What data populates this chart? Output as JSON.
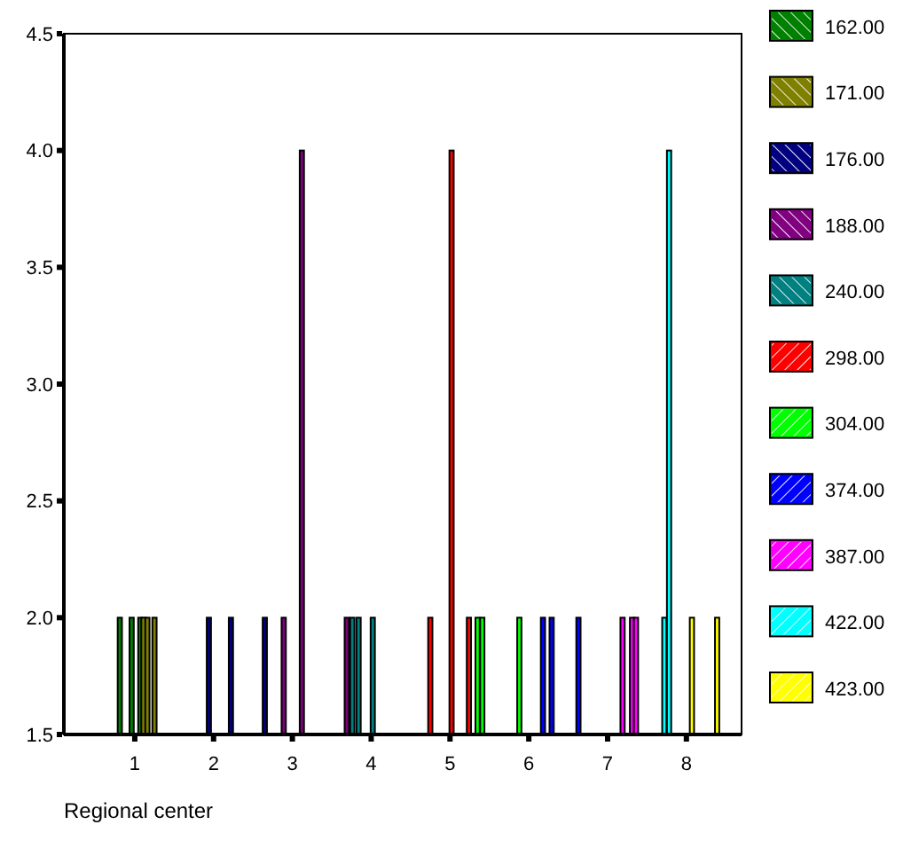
{
  "chart_data": {
    "type": "bar",
    "xlabel": "Regional center",
    "xlim": [
      0.1,
      8.7
    ],
    "xticks": [
      1,
      2,
      3,
      4,
      5,
      6,
      7,
      8
    ],
    "ylim": [
      1.5,
      4.5
    ],
    "yticks": [
      {
        "value": 1.5,
        "label": "1.5"
      },
      {
        "value": 2,
        "label": "2.0"
      },
      {
        "value": 2.5,
        "label": "2.5"
      },
      {
        "value": 3,
        "label": "3.0"
      },
      {
        "value": 3.5,
        "label": "3.5"
      },
      {
        "value": 4,
        "label": "4.0"
      },
      {
        "value": 4.5,
        "label": "4.5"
      }
    ],
    "grid": false,
    "legend": "right",
    "series": [
      {
        "name": "162.00",
        "color": "#008000",
        "x": [
          0.81,
          0.96,
          1.07
        ],
        "values": [
          2,
          2,
          2
        ]
      },
      {
        "name": "171.00",
        "color": "#808000",
        "x": [
          1.11,
          1.16,
          1.25
        ],
        "values": [
          2,
          2,
          2
        ]
      },
      {
        "name": "176.00",
        "color": "#000080",
        "x": [
          1.94,
          2.22,
          2.65
        ],
        "values": [
          2,
          2,
          2
        ]
      },
      {
        "name": "188.00",
        "color": "#800080",
        "x": [
          2.89,
          3.12,
          3.69
        ],
        "values": [
          2,
          4,
          2
        ]
      },
      {
        "name": "240.00",
        "color": "#008080",
        "x": [
          3.76,
          3.84,
          4.02
        ],
        "values": [
          2,
          2,
          2
        ]
      },
      {
        "name": "298.00",
        "color": "#ff0000",
        "x": [
          4.75,
          5.02,
          5.24
        ],
        "values": [
          2,
          4,
          2
        ]
      },
      {
        "name": "304.00",
        "color": "#00ff00",
        "x": [
          5.35,
          5.41,
          5.88
        ],
        "values": [
          2,
          2,
          2
        ]
      },
      {
        "name": "374.00",
        "color": "#0000ff",
        "x": [
          6.18,
          6.29,
          6.63
        ],
        "values": [
          2,
          2,
          2
        ]
      },
      {
        "name": "387.00",
        "color": "#ff00ff",
        "x": [
          7.19,
          7.31,
          7.36
        ],
        "values": [
          2,
          2,
          2
        ]
      },
      {
        "name": "422.00",
        "color": "#00ffff",
        "x": [
          7.72,
          7.78
        ],
        "values": [
          2,
          4
        ]
      },
      {
        "name": "423.00",
        "color": "#ffff00",
        "x": [
          8.07,
          8.39
        ],
        "values": [
          2,
          2
        ]
      }
    ]
  }
}
